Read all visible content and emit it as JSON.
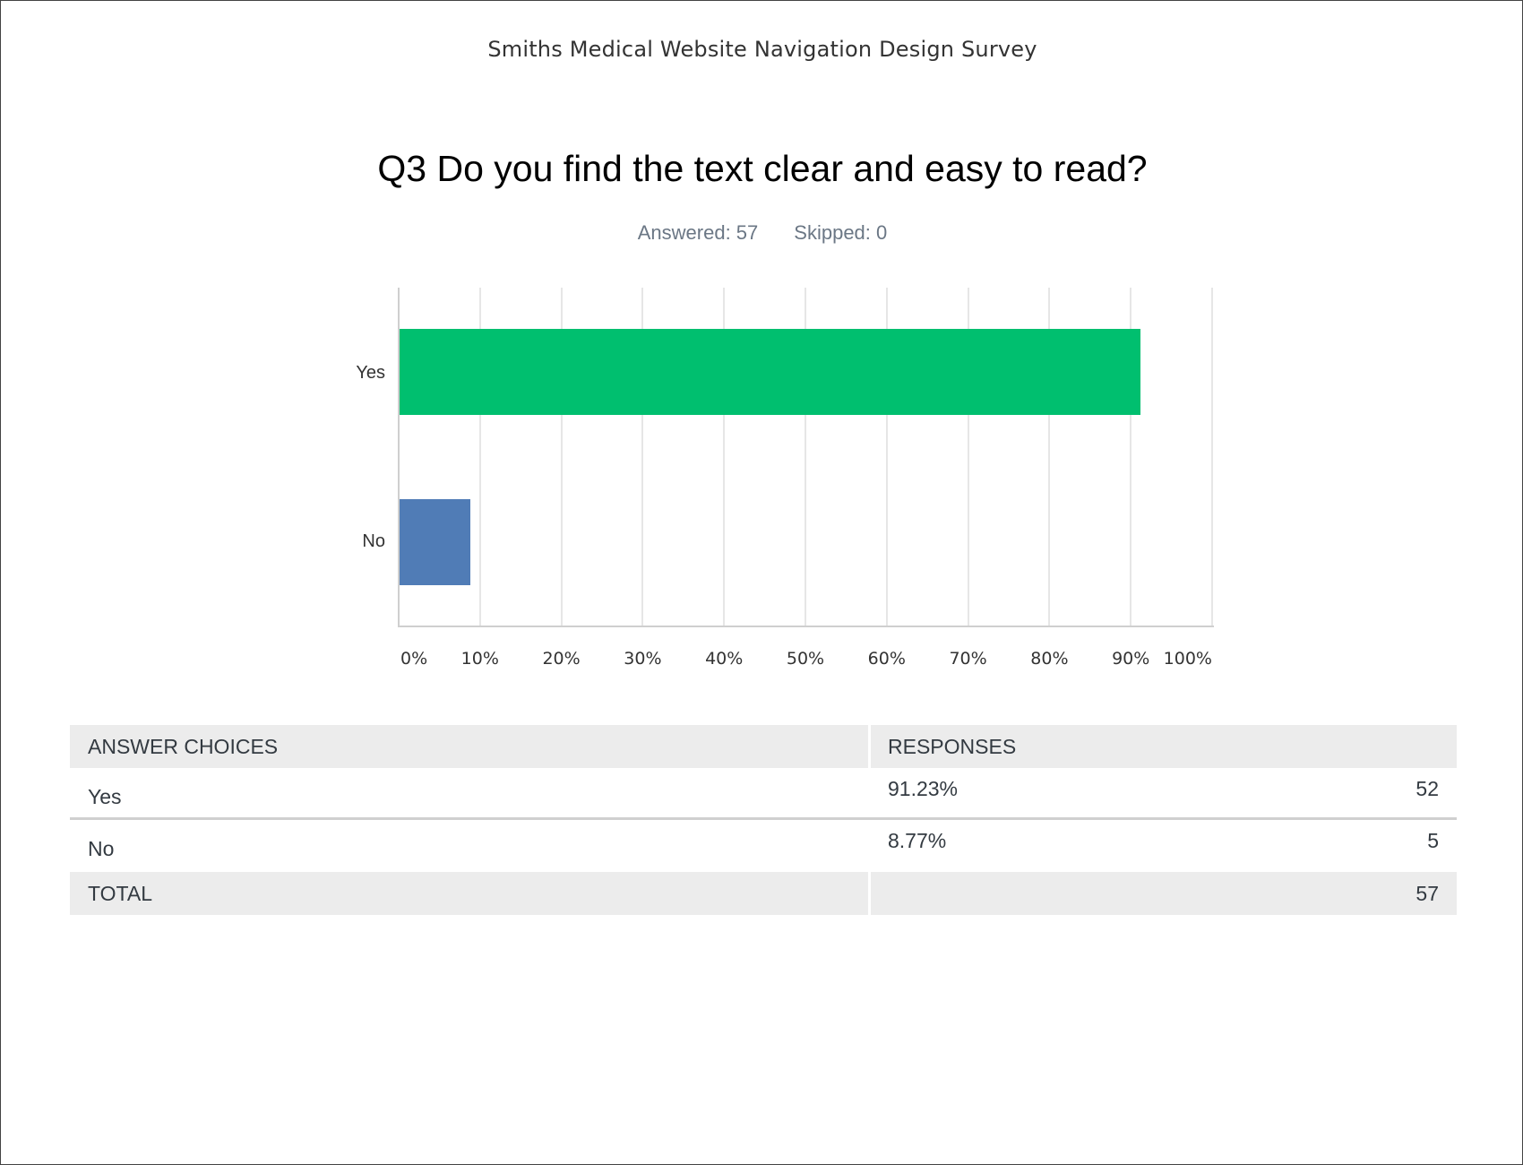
{
  "header": {
    "survey_title": "Smiths Medical Website Navigation Design Survey",
    "question": "Q3 Do you find the text clear and easy to read?",
    "answered_label": "Answered: 57",
    "skipped_label": "Skipped: 0"
  },
  "colors": {
    "yes_bar": "#00bf6f",
    "no_bar": "#507cb6",
    "table_header_bg": "#ececec"
  },
  "chart_data": {
    "type": "bar",
    "orientation": "horizontal",
    "title": "Q3 Do you find the text clear and easy to read?",
    "categories": [
      "Yes",
      "No"
    ],
    "values": [
      91.23,
      8.77
    ],
    "units": "%",
    "xlabel": "",
    "ylabel": "",
    "xlim": [
      0,
      100
    ],
    "x_ticks": [
      "0%",
      "10%",
      "20%",
      "30%",
      "40%",
      "50%",
      "60%",
      "70%",
      "80%",
      "90%",
      "100%"
    ],
    "grid": true,
    "legend": null,
    "bar_colors": [
      "#00bf6f",
      "#507cb6"
    ]
  },
  "table": {
    "headers": [
      "ANSWER CHOICES",
      "RESPONSES"
    ],
    "rows": [
      {
        "choice": "Yes",
        "percent": "91.23%",
        "count": "52"
      },
      {
        "choice": "No",
        "percent": "8.77%",
        "count": "5"
      }
    ],
    "total_label": "TOTAL",
    "total_count": "57"
  }
}
